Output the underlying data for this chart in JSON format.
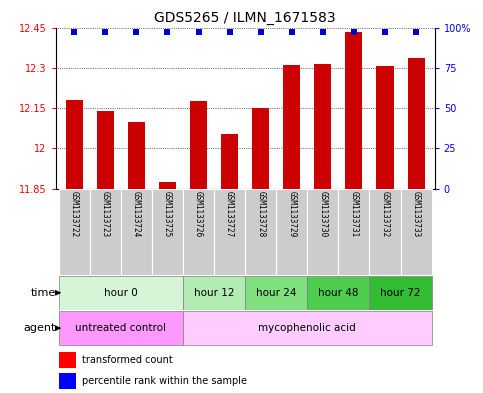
{
  "title": "GDS5265 / ILMN_1671583",
  "samples": [
    "GSM1133722",
    "GSM1133723",
    "GSM1133724",
    "GSM1133725",
    "GSM1133726",
    "GSM1133727",
    "GSM1133728",
    "GSM1133729",
    "GSM1133730",
    "GSM1133731",
    "GSM1133732",
    "GSM1133733"
  ],
  "transformed_counts": [
    12.18,
    12.14,
    12.1,
    11.875,
    12.175,
    12.055,
    12.15,
    12.31,
    12.315,
    12.435,
    12.305,
    12.335
  ],
  "ymin": 11.85,
  "ymax": 12.45,
  "yticks": [
    11.85,
    12.0,
    12.15,
    12.3,
    12.45
  ],
  "ytick_labels": [
    "11.85",
    "12",
    "12.15",
    "12.3",
    "12.45"
  ],
  "y2ticks": [
    0,
    25,
    50,
    75,
    100
  ],
  "y2tick_labels": [
    "0",
    "25",
    "50",
    "75",
    "100%"
  ],
  "time_groups": [
    {
      "label": "hour 0",
      "start": 0,
      "end": 3,
      "color": "#d6f5d6"
    },
    {
      "label": "hour 12",
      "start": 4,
      "end": 5,
      "color": "#b3ecb3"
    },
    {
      "label": "hour 24",
      "start": 6,
      "end": 7,
      "color": "#80e080"
    },
    {
      "label": "hour 48",
      "start": 8,
      "end": 9,
      "color": "#4dcc4d"
    },
    {
      "label": "hour 72",
      "start": 10,
      "end": 11,
      "color": "#33bb33"
    }
  ],
  "agent_groups": [
    {
      "label": "untreated control",
      "start": 0,
      "end": 3,
      "color": "#ff99ff"
    },
    {
      "label": "mycophenolic acid",
      "start": 4,
      "end": 11,
      "color": "#ffccff"
    }
  ],
  "bar_color": "#cc0000",
  "dot_color": "#0000cc",
  "sample_bg_color": "#cccccc",
  "legend_red_label": "transformed count",
  "legend_blue_label": "percentile rank within the sample",
  "title_fontsize": 10,
  "tick_fontsize": 7,
  "sample_fontsize": 5.5,
  "row_label_fontsize": 8,
  "row_text_fontsize": 7.5
}
